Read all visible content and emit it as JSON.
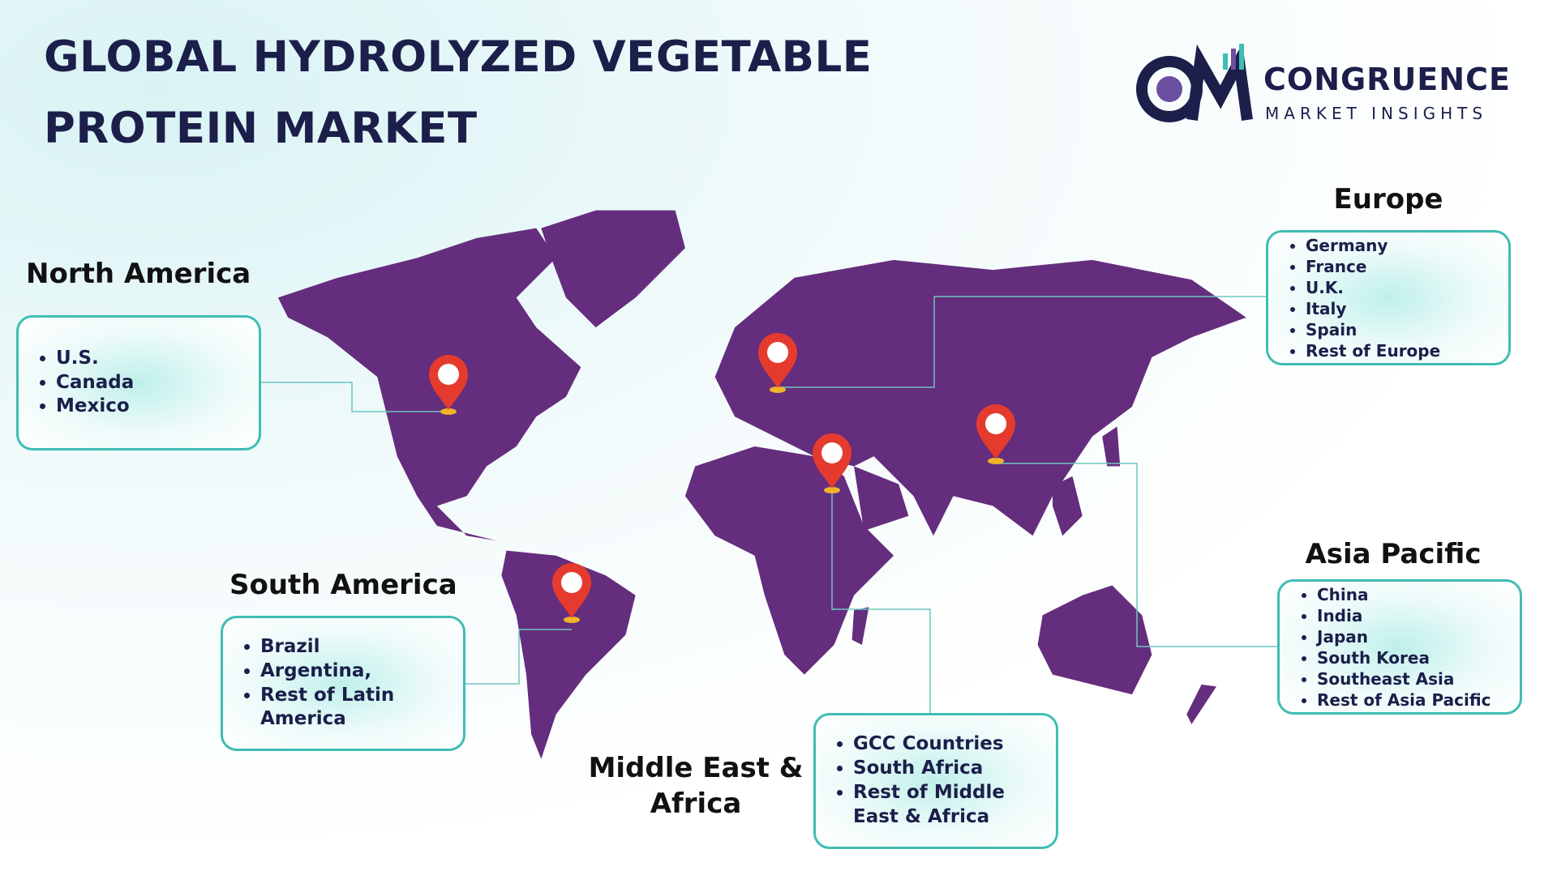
{
  "header": {
    "title_lines": [
      "GLOBAL HYDROLYZED VEGETABLE",
      "PROTEIN MARKET"
    ]
  },
  "logo": {
    "name": "CONGRUENCE",
    "tagline": "MARKET INSIGHTS"
  },
  "regions": [
    {
      "name": "North America",
      "items": [
        "U.S.",
        "Canada",
        "Mexico"
      ]
    },
    {
      "name": "South America",
      "items": [
        "Brazil",
        "Argentina,",
        "Rest of Latin America"
      ]
    },
    {
      "name": "Middle East & Africa",
      "items": [
        "GCC Countries",
        "South Africa",
        "Rest of Middle East & Africa"
      ]
    },
    {
      "name": "Europe",
      "items": [
        "Germany",
        "France",
        "U.K.",
        "Italy",
        "Spain",
        "Rest of Europe"
      ]
    },
    {
      "name": "Asia Pacific",
      "items": [
        "China",
        "India",
        "Japan",
        "South Korea",
        "Southeast Asia",
        "Rest of Asia Pacific"
      ]
    }
  ]
}
